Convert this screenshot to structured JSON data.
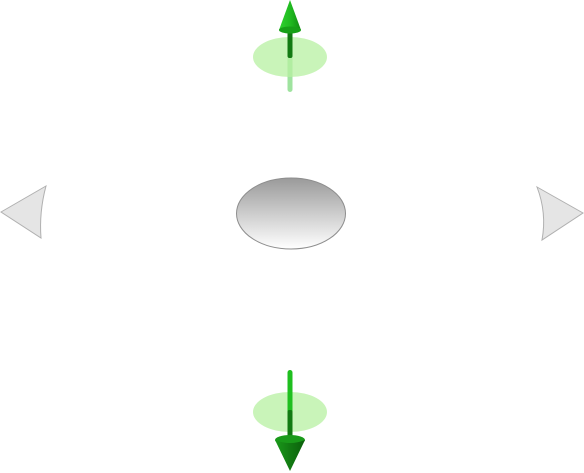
{
  "controls": {
    "up_arrow": {
      "icon": "arrow-up-icon",
      "color": "#1fbf1f",
      "dark_color": "#127a12",
      "halo_color": "#b7f0a2"
    },
    "down_arrow": {
      "icon": "arrow-down-icon",
      "color": "#1fbf1f",
      "dark_color": "#127a12",
      "halo_color": "#b7f0a2"
    },
    "left_arrow": {
      "icon": "arrow-left-icon",
      "color": "#e5e5e5",
      "border_color": "#b0b0b0"
    },
    "right_arrow": {
      "icon": "arrow-right-icon",
      "color": "#e5e5e5",
      "border_color": "#b0b0b0"
    },
    "center_knob": {
      "icon": "center-knob-icon",
      "color_top": "#9a9a9a",
      "color_bottom": "#ffffff",
      "border_color": "#8e8e8e"
    }
  }
}
